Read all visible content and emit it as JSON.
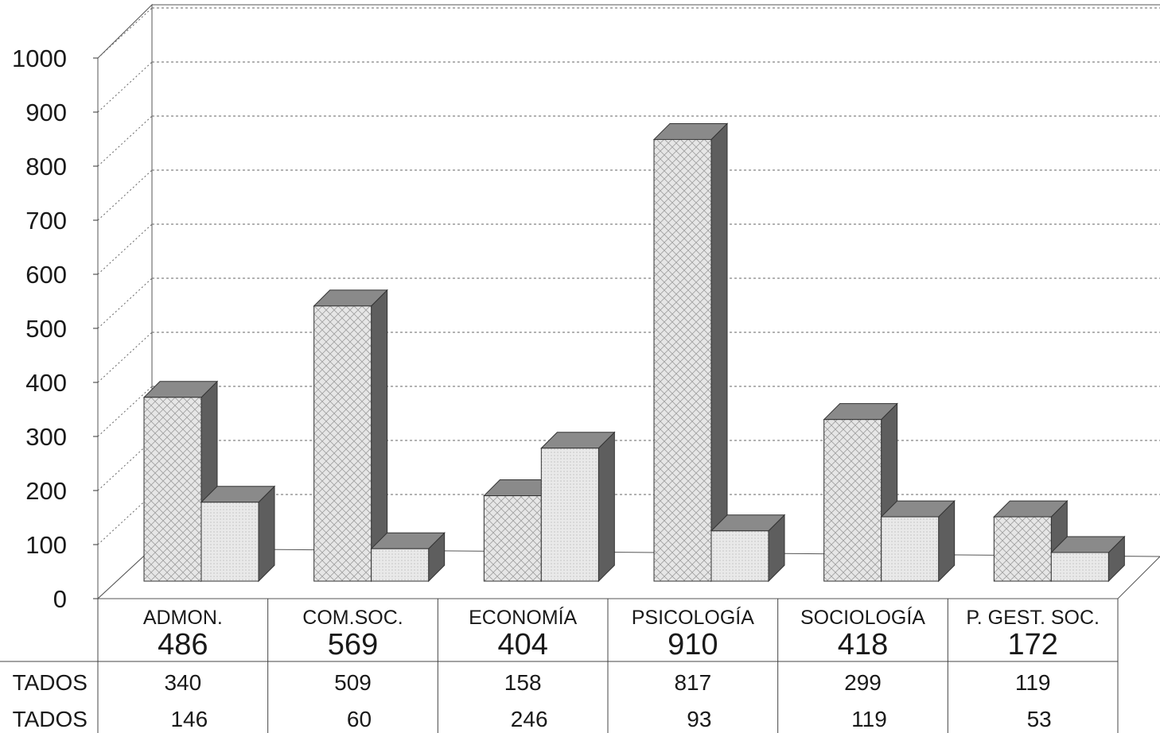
{
  "chart_data": {
    "type": "bar",
    "style": "3d clustered columns with data table",
    "ylim": [
      0,
      1000
    ],
    "yticks": [
      0,
      100,
      200,
      300,
      400,
      500,
      600,
      700,
      800,
      900,
      1000
    ],
    "grid": "dashed horizontal",
    "categories": [
      "ADMON.",
      "COM.SOC.",
      "ECONOMÍA",
      "PSICOLOGÍA",
      "SOCIOLOGÍA",
      "P. GEST. SOC."
    ],
    "totals": [
      486,
      569,
      404,
      910,
      418,
      172
    ],
    "series": [
      {
        "label": "TADOS",
        "values": [
          340,
          509,
          158,
          817,
          299,
          119
        ],
        "pattern": "crosshatch"
      },
      {
        "label": "TADOS",
        "values": [
          146,
          60,
          246,
          93,
          119,
          53
        ],
        "pattern": "dots"
      }
    ]
  },
  "colors": {
    "front_light": "#e3e3e3",
    "side": "#5e5e5e",
    "top": "#8a8a8a",
    "hatch": "#9a9a9a",
    "grid": "#666666",
    "frame": "#555555"
  }
}
